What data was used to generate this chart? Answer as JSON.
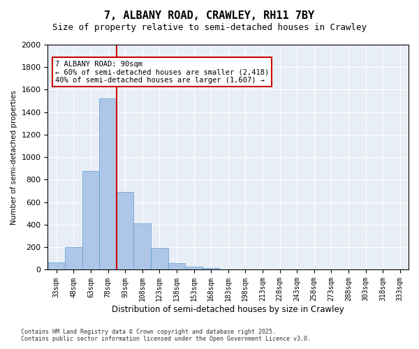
{
  "title1": "7, ALBANY ROAD, CRAWLEY, RH11 7BY",
  "title2": "Size of property relative to semi-detached houses in Crawley",
  "xlabel": "Distribution of semi-detached houses by size in Crawley",
  "ylabel": "Number of semi-detached properties",
  "bin_labels": [
    "33sqm",
    "48sqm",
    "63sqm",
    "78sqm",
    "93sqm",
    "108sqm",
    "123sqm",
    "138sqm",
    "153sqm",
    "168sqm",
    "183sqm",
    "198sqm",
    "213sqm",
    "228sqm",
    "243sqm",
    "258sqm",
    "273sqm",
    "288sqm",
    "303sqm",
    "318sqm",
    "333sqm"
  ],
  "bar_values": [
    65,
    200,
    880,
    1520,
    690,
    415,
    195,
    60,
    25,
    15,
    5,
    0,
    0,
    0,
    0,
    0,
    0,
    0,
    0,
    0,
    0
  ],
  "property_size": 90,
  "property_bin_index": 3,
  "annotation_title": "7 ALBANY ROAD: 90sqm",
  "annotation_line1": "← 60% of semi-detached houses are smaller (2,418)",
  "annotation_line2": "40% of semi-detached houses are larger (1,607) →",
  "bar_color": "#aec6e8",
  "bar_edge_color": "#5a9fd4",
  "vline_color": "#cc0000",
  "annotation_box_edge": "#cc0000",
  "background_color": "#e8eef5",
  "ylim": [
    0,
    2000
  ],
  "yticks": [
    0,
    200,
    400,
    600,
    800,
    1000,
    1200,
    1400,
    1600,
    1800,
    2000
  ],
  "footnote1": "Contains HM Land Registry data © Crown copyright and database right 2025.",
  "footnote2": "Contains public sector information licensed under the Open Government Licence v3.0."
}
